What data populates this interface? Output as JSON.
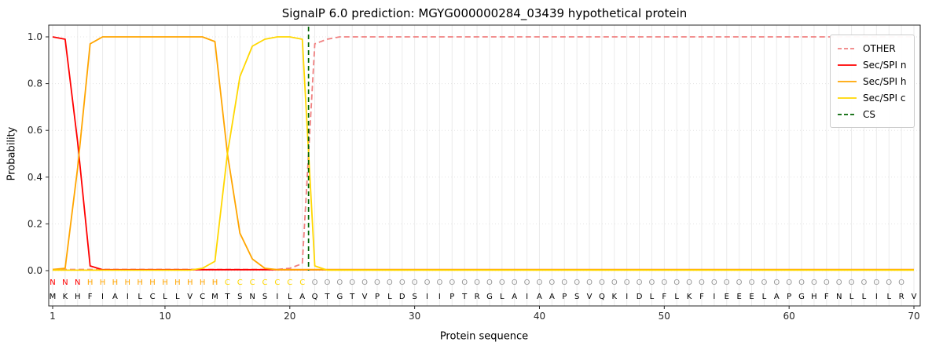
{
  "title": "SignalP 6.0 prediction: MGYG000000284_03439 hypothetical protein",
  "axes": {
    "ylabel": "Probability",
    "xlabel": "Protein sequence",
    "yticks": [
      "0.0",
      "0.2",
      "0.4",
      "0.6",
      "0.8",
      "1.0"
    ],
    "ytick_values": [
      0,
      0.2,
      0.4,
      0.6,
      0.8,
      1.0
    ],
    "xticks": [
      1,
      10,
      20,
      30,
      40,
      50,
      60,
      70
    ],
    "xlim": [
      1,
      70
    ],
    "ylim": [
      -0.15,
      1.05
    ],
    "grid": true
  },
  "legend": {
    "position": "upper-right",
    "items": [
      {
        "label": "OTHER",
        "color": "#f08080",
        "dash": true
      },
      {
        "label": "Sec/SPI n",
        "color": "#ff0000",
        "dash": false
      },
      {
        "label": "Sec/SPI h",
        "color": "#ffa500",
        "dash": false
      },
      {
        "label": "Sec/SPI c",
        "color": "#ffd700",
        "dash": false
      },
      {
        "label": "CS",
        "color": "#006400",
        "dash": true
      }
    ]
  },
  "chart_data": {
    "type": "line",
    "title": "SignalP 6.0 prediction: MGYG000000284_03439 hypothetical protein",
    "xlabel": "Protein sequence",
    "ylabel": "Probability",
    "x": {
      "start": 1,
      "step": 1,
      "end": 70
    },
    "series": [
      {
        "name": "OTHER",
        "color": "#f08080",
        "dash": true,
        "values": [
          0.005,
          0.005,
          0.005,
          0.005,
          0.005,
          0.005,
          0.005,
          0.005,
          0.005,
          0.005,
          0.005,
          0.005,
          0.005,
          0.005,
          0.005,
          0.005,
          0.005,
          0.005,
          0.005,
          0.01,
          0.03,
          0.97,
          0.99,
          1,
          1,
          1,
          1,
          1,
          1,
          1,
          1,
          1,
          1,
          1,
          1,
          1,
          1,
          1,
          1,
          1,
          1,
          1,
          1,
          1,
          1,
          1,
          1,
          1,
          1,
          1,
          1,
          1,
          1,
          1,
          1,
          1,
          1,
          1,
          1,
          1,
          1,
          1,
          1,
          1,
          1,
          1,
          1,
          1,
          1,
          1
        ]
      },
      {
        "name": "Sec/SPI n",
        "color": "#ff0000",
        "dash": false,
        "values": [
          1.0,
          0.99,
          0.55,
          0.02,
          0.004,
          0.004,
          0.004,
          0.004,
          0.004,
          0.004,
          0.004,
          0.004,
          0.004,
          0.004,
          0.004,
          0.004,
          0.004,
          0.004,
          0.004,
          0.004,
          0.004,
          0.004,
          0.004,
          0.004,
          0.004,
          0.004,
          0.004,
          0.004,
          0.004,
          0.004,
          0.004,
          0.004,
          0.004,
          0.004,
          0.004,
          0.004,
          0.004,
          0.004,
          0.004,
          0.004,
          0.004,
          0.004,
          0.004,
          0.004,
          0.004,
          0.004,
          0.004,
          0.004,
          0.004,
          0.004,
          0.004,
          0.004,
          0.004,
          0.004,
          0.004,
          0.004,
          0.004,
          0.004,
          0.004,
          0.004,
          0.004,
          0.004,
          0.004,
          0.004,
          0.004,
          0.004,
          0.004,
          0.004,
          0.004,
          0.004
        ]
      },
      {
        "name": "Sec/SPI h",
        "color": "#ffa500",
        "dash": false,
        "values": [
          0.005,
          0.01,
          0.44,
          0.97,
          1,
          1,
          1,
          1,
          1,
          1,
          1,
          1,
          1,
          0.98,
          0.5,
          0.16,
          0.05,
          0.01,
          0.004,
          0.004,
          0.004,
          0.004,
          0.004,
          0.004,
          0.004,
          0.004,
          0.004,
          0.004,
          0.004,
          0.004,
          0.004,
          0.004,
          0.004,
          0.004,
          0.004,
          0.004,
          0.004,
          0.004,
          0.004,
          0.004,
          0.004,
          0.004,
          0.004,
          0.004,
          0.004,
          0.004,
          0.004,
          0.004,
          0.004,
          0.004,
          0.004,
          0.004,
          0.004,
          0.004,
          0.004,
          0.004,
          0.004,
          0.004,
          0.004,
          0.004,
          0.004,
          0.004,
          0.004,
          0.004,
          0.004,
          0.004,
          0.004,
          0.004,
          0.004,
          0.004
        ]
      },
      {
        "name": "Sec/SPI c",
        "color": "#ffd700",
        "dash": false,
        "values": [
          0.002,
          0.002,
          0.002,
          0.002,
          0.002,
          0.002,
          0.002,
          0.002,
          0.002,
          0.002,
          0.002,
          0.002,
          0.01,
          0.04,
          0.5,
          0.83,
          0.96,
          0.99,
          1,
          1,
          0.99,
          0.02,
          0.002,
          0.002,
          0.002,
          0.002,
          0.002,
          0.002,
          0.002,
          0.002,
          0.002,
          0.002,
          0.002,
          0.002,
          0.002,
          0.002,
          0.002,
          0.002,
          0.002,
          0.002,
          0.002,
          0.002,
          0.002,
          0.002,
          0.002,
          0.002,
          0.002,
          0.002,
          0.002,
          0.002,
          0.002,
          0.002,
          0.002,
          0.002,
          0.002,
          0.002,
          0.002,
          0.002,
          0.002,
          0.002,
          0.002,
          0.002,
          0.002,
          0.002,
          0.002,
          0.002,
          0.002,
          0.002,
          0.002,
          0.002
        ]
      }
    ],
    "cs_line": {
      "name": "CS",
      "x": 21.5,
      "color": "#006400",
      "dash": true
    },
    "sequence": "MKHFIAILCLLVCMTSNSILAQTGTVPLDSIIPTRGLAIAAPSVQKIDLFLKFIEEELAPGHFNLLILRV",
    "region_labels": "NNNHHHHHHHHHHHCCCCCCCOOOOOOOOOOOOOOOOOOOOOOOOOOOOOOOOOOOOOOOOOOOOOOOO",
    "region_colors": {
      "N": "#ff0000",
      "H": "#ffa500",
      "C": "#ffd700",
      "O": "#999999"
    }
  }
}
